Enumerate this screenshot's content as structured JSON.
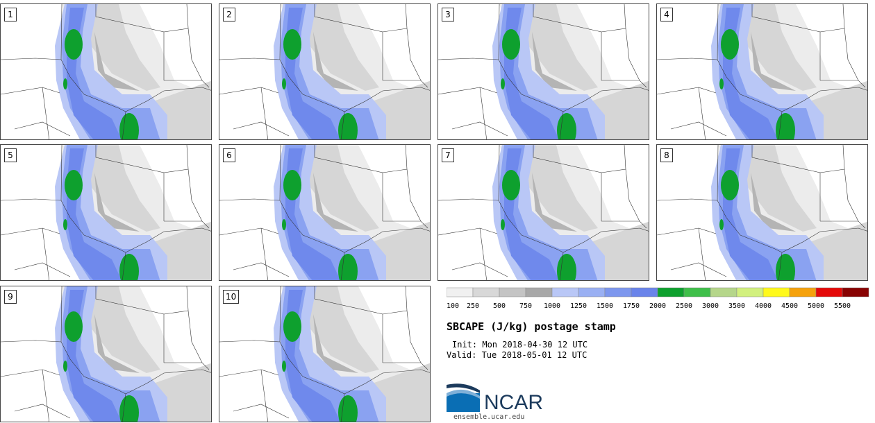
{
  "product": {
    "title": "SBCAPE (J/kg) postage stamp",
    "init": "Init: Mon 2018-04-30 12 UTC",
    "valid": "Valid: Tue 2018-05-01 12 UTC"
  },
  "members": [
    "1",
    "2",
    "3",
    "4",
    "5",
    "6",
    "7",
    "8",
    "9",
    "10"
  ],
  "legend": {
    "colors": [
      "#f0f0f0",
      "#d8d8d8",
      "#c4c4c4",
      "#a8a8a8",
      "#b9c7f6",
      "#9ab0f3",
      "#7d97ee",
      "#6a84ea",
      "#0ea02e",
      "#3fbf4a",
      "#b5d68a",
      "#d2f07e",
      "#fff91c",
      "#f5a20d",
      "#e40a09",
      "#880303"
    ],
    "labels": [
      "100",
      "250",
      "500",
      "750",
      "1000",
      "1250",
      "1500",
      "1750",
      "2000",
      "2500",
      "3000",
      "3500",
      "4000",
      "4500",
      "5000",
      "5500"
    ]
  },
  "branding": {
    "org": "NCAR",
    "url": "ensemble.ucar.edu"
  },
  "colors": {
    "white": "#ffffff",
    "g1": "#ececec",
    "g2": "#d6d6d6",
    "g3": "#b4b4b4",
    "b1": "#b9c7f6",
    "b2": "#8aa2f1",
    "b3": "#6f89ec",
    "green": "#0ea02e",
    "border": "#333333"
  }
}
